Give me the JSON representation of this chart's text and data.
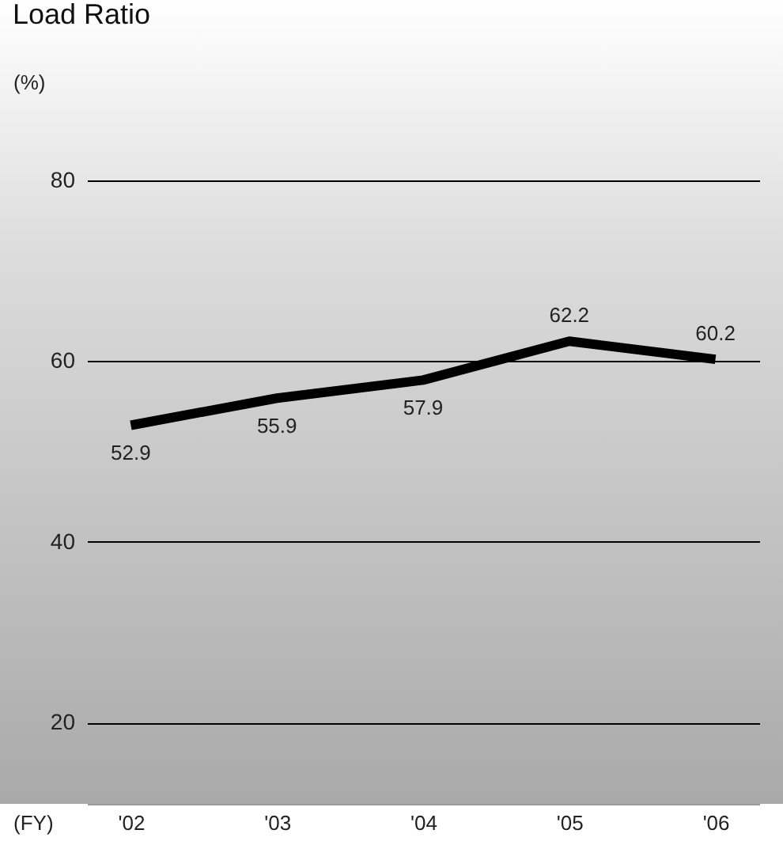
{
  "chart_data": {
    "type": "line",
    "title": "Load Ratio",
    "ylabel": "(%)",
    "xlabel": "(FY)",
    "categories": [
      "'02",
      "'03",
      "'04",
      "'05",
      "'06"
    ],
    "series": [
      {
        "color": "#000000",
        "values": [
          52.9,
          55.9,
          57.9,
          62.2,
          60.2
        ]
      }
    ],
    "ylim": [
      11,
      80
    ],
    "yticks": [
      20,
      40,
      60,
      80
    ],
    "grid": "y",
    "data_labels": true
  }
}
